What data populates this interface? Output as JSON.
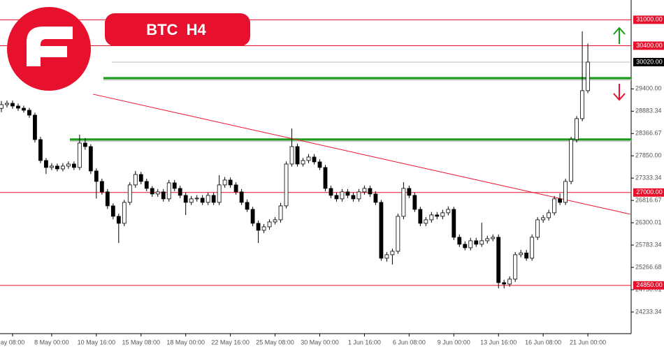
{
  "chart_data": {
    "type": "candlestick",
    "title": "BTC  H4",
    "ylim": [
      23732,
      31458
    ],
    "xlim": [
      -0.25,
      112.75
    ],
    "yticks": [
      {
        "value": 24233.34,
        "label": "24233.34"
      },
      {
        "value": 24750.01,
        "label": "24750.01"
      },
      {
        "value": 25266.68,
        "label": "25266.68"
      },
      {
        "value": 25783.34,
        "label": "25783.34"
      },
      {
        "value": 26300.01,
        "label": "26300.01"
      },
      {
        "value": 26816.67,
        "label": "26816.67"
      },
      {
        "value": 27333.34,
        "label": "27333.34"
      },
      {
        "value": 27850,
        "label": "27850.00"
      },
      {
        "value": 28366.67,
        "label": "28366.67"
      },
      {
        "value": 28883.34,
        "label": "28883.34"
      },
      {
        "value": 29400,
        "label": "29400.00"
      }
    ],
    "xticks": [
      {
        "value": 2,
        "label": "ay 08:00"
      },
      {
        "value": 9,
        "label": "8 May 00:00"
      },
      {
        "value": 17,
        "label": "10 May 16:00"
      },
      {
        "value": 25,
        "label": "15 May 08:00"
      },
      {
        "value": 33,
        "label": "18 May 00:00"
      },
      {
        "value": 41,
        "label": "22 May 16:00"
      },
      {
        "value": 49,
        "label": "25 May 08:00"
      },
      {
        "value": 57,
        "label": "30 May 00:00"
      },
      {
        "value": 65,
        "label": "1 Jun 16:00"
      },
      {
        "value": 73,
        "label": "6 Jun 08:00"
      },
      {
        "value": 81,
        "label": "9 Jun 00:00"
      },
      {
        "value": 89,
        "label": "13 Jun 16:00"
      },
      {
        "value": 97,
        "label": "16 Jun 08:00"
      },
      {
        "value": 105,
        "label": "21 Jun 00:00"
      }
    ],
    "open": [
      28950,
      29034,
      29066,
      29002,
      28953,
      28905,
      28792,
      28226,
      27741,
      27580,
      27612,
      27547,
      27612,
      27660,
      27580,
      28145,
      28064,
      27499,
      27257,
      27015,
      26691,
      26449,
      26287,
      26772,
      27176,
      27418,
      27257,
      27095,
      26966,
      27015,
      26853,
      27224,
      27095,
      26934,
      26772,
      26853,
      26870,
      26772,
      26934,
      26772,
      27176,
      27289,
      27176,
      27015,
      26772,
      26610,
      26287,
      26125,
      26206,
      26319,
      26368,
      26691,
      27660,
      28064,
      27660,
      27741,
      27822,
      27709,
      27580,
      27095,
      26934,
      26853,
      27015,
      26934,
      26853,
      27015,
      27095,
      26966,
      26772,
      25479,
      25560,
      25640,
      26449,
      27095,
      26934,
      26610,
      26287,
      26368,
      26481,
      26449,
      26530,
      26610,
      25964,
      25802,
      25721,
      25883,
      25802,
      25883,
      25931,
      25964,
      24913,
      24880,
      24994,
      25560,
      25600,
      25479,
      25964,
      26368,
      26416,
      26530,
      26853,
      26772,
      27257,
      28226,
      28711,
      29358
    ],
    "high": [
      29120,
      29130,
      29130,
      29060,
      29010,
      28960,
      28850,
      28290,
      27800,
      27680,
      27670,
      27680,
      27720,
      27720,
      28340,
      28260,
      28120,
      27560,
      27320,
      27080,
      26750,
      26510,
      26830,
      27240,
      27500,
      27480,
      27320,
      27150,
      27080,
      27080,
      27290,
      27290,
      27160,
      27000,
      26920,
      26940,
      26940,
      27000,
      27000,
      27400,
      27360,
      27350,
      27240,
      27080,
      26840,
      26670,
      26350,
      26270,
      26380,
      26430,
      26760,
      27720,
      28480,
      28130,
      27800,
      27890,
      27890,
      27770,
      27640,
      27160,
      27000,
      27080,
      27080,
      27000,
      27080,
      27160,
      27160,
      27030,
      26830,
      25620,
      25700,
      26510,
      27240,
      27160,
      27000,
      26670,
      26430,
      26550,
      26550,
      26600,
      26680,
      26670,
      26030,
      25870,
      25950,
      25950,
      26300,
      26000,
      26030,
      26030,
      24980,
      25060,
      25620,
      25670,
      25670,
      26030,
      26430,
      26480,
      26600,
      26920,
      26980,
      27320,
      28290,
      28770,
      30731,
      30450
    ],
    "low": [
      28860,
      28970,
      28940,
      28890,
      28850,
      28730,
      28160,
      27680,
      27430,
      27520,
      27490,
      27490,
      27550,
      27520,
      27520,
      27990,
      27430,
      26860,
      26950,
      26620,
      26380,
      25830,
      26220,
      26710,
      27110,
      27190,
      27030,
      26900,
      26900,
      26790,
      26790,
      27030,
      26870,
      26480,
      26710,
      26790,
      26710,
      26710,
      26710,
      26710,
      27110,
      27110,
      26950,
      26710,
      26550,
      26220,
      25830,
      26060,
      26140,
      26260,
      26300,
      26630,
      27600,
      27600,
      27600,
      27680,
      27650,
      27520,
      27030,
      26870,
      26790,
      26790,
      26870,
      26790,
      26790,
      26950,
      26900,
      26710,
      25420,
      25400,
      25330,
      25580,
      26380,
      26870,
      26550,
      26220,
      26220,
      26300,
      26380,
      26380,
      26470,
      25900,
      25740,
      25660,
      25660,
      25740,
      25740,
      25820,
      25870,
      24780,
      24780,
      24820,
      24930,
      25500,
      25420,
      25420,
      25900,
      26300,
      26350,
      26470,
      26710,
      26710,
      27190,
      28160,
      28650,
      29300
    ],
    "close": [
      29034,
      29066,
      29002,
      28953,
      28905,
      28792,
      28226,
      27741,
      27580,
      27612,
      27547,
      27612,
      27660,
      27580,
      28145,
      28064,
      27499,
      27257,
      27015,
      26691,
      26449,
      26287,
      26772,
      27176,
      27418,
      27257,
      27095,
      26966,
      27015,
      26853,
      27224,
      27095,
      26934,
      26772,
      26853,
      26870,
      26772,
      26934,
      26772,
      27176,
      27289,
      27176,
      27015,
      26772,
      26610,
      26287,
      26125,
      26206,
      26319,
      26368,
      26691,
      27660,
      28064,
      27660,
      27741,
      27822,
      27709,
      27580,
      27095,
      26934,
      26853,
      27015,
      26934,
      26853,
      27015,
      27095,
      26966,
      26772,
      25479,
      25560,
      25640,
      26449,
      27095,
      26934,
      26610,
      26287,
      26368,
      26481,
      26449,
      26530,
      26610,
      25964,
      25802,
      25721,
      25883,
      25802,
      25883,
      25931,
      25964,
      24913,
      24880,
      24994,
      25560,
      25600,
      25479,
      25964,
      26368,
      26416,
      26530,
      26853,
      26772,
      27257,
      28226,
      28711,
      29358,
      30020
    ],
    "levels": [
      {
        "value": 31000,
        "label": "31000.00",
        "color": "#e8112d"
      },
      {
        "value": 30400,
        "label": "30400.00",
        "color": "#e8112d"
      },
      {
        "value": 30020,
        "label": "30020.00",
        "color": "#000000"
      },
      {
        "value": 27000,
        "label": "27000.00",
        "color": "#e8112d"
      },
      {
        "value": 24850,
        "label": "24850.00",
        "color": "#e8112d"
      }
    ],
    "zones": [
      {
        "value": 29650,
        "color": "#1a9e1a"
      },
      {
        "value": 28230,
        "color": "#1a9e1a"
      }
    ],
    "trendline": {
      "x": [
        16.4,
        112.6
      ],
      "values": [
        29277,
        26497
      ],
      "color": "#e8112d"
    }
  }
}
